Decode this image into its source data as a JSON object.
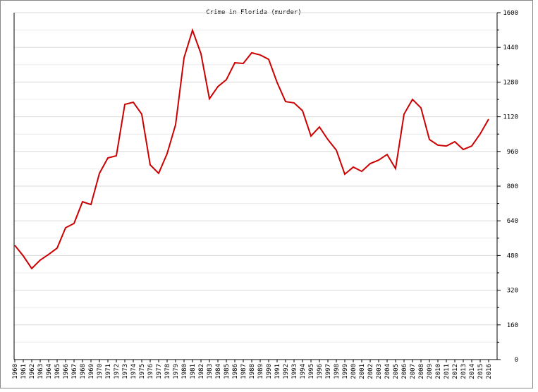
{
  "chart_data": {
    "type": "line",
    "title": "Crime in Florida (murder)",
    "categories": [
      "1960",
      "1961",
      "1962",
      "1963",
      "1964",
      "1965",
      "1966",
      "1967",
      "1968",
      "1969",
      "1970",
      "1971",
      "1972",
      "1973",
      "1974",
      "1975",
      "1976",
      "1977",
      "1978",
      "1979",
      "1980",
      "1981",
      "1982",
      "1983",
      "1984",
      "1985",
      "1986",
      "1987",
      "1988",
      "1989",
      "1990",
      "1991",
      "1992",
      "1993",
      "1994",
      "1995",
      "1996",
      "1997",
      "1998",
      "1999",
      "2000",
      "2001",
      "2002",
      "2003",
      "2004",
      "2005",
      "2006",
      "2007",
      "2008",
      "2009",
      "2010",
      "2011",
      "2012",
      "2013",
      "2014",
      "2015",
      "2016"
    ],
    "series": [
      {
        "name": "murder",
        "color": "#cc0000",
        "values": [
          527,
          478,
          420,
          459,
          485,
          514,
          608,
          628,
          728,
          715,
          859,
          930,
          940,
          1177,
          1187,
          1132,
          898,
          859,
          950,
          1083,
          1392,
          1519,
          1411,
          1203,
          1259,
          1291,
          1369,
          1366,
          1415,
          1405,
          1385,
          1278,
          1190,
          1184,
          1148,
          1031,
          1073,
          1015,
          966,
          855,
          888,
          868,
          904,
          920,
          946,
          881,
          1132,
          1200,
          1161,
          1015,
          989,
          985,
          1005,
          969,
          985,
          1041,
          1109
        ]
      }
    ],
    "ylim": [
      0,
      1600
    ],
    "yticks": [
      0,
      160,
      320,
      480,
      640,
      800,
      960,
      1120,
      1280,
      1440,
      1600
    ],
    "y_minor_ticks": [
      80,
      240,
      400,
      560,
      720,
      880,
      1040,
      1200,
      1360,
      1520
    ],
    "grid": true,
    "y_axis_side": "right"
  }
}
